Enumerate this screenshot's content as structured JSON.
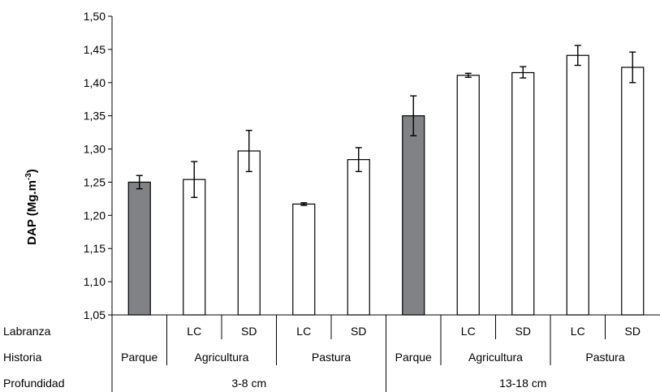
{
  "chart_data": {
    "type": "bar",
    "ylabel_main": "DAP (Mg.m",
    "ylabel_sup": "-3",
    "ylabel_close": ")",
    "ylim": [
      1.05,
      1.5
    ],
    "yticks": [
      "1,05",
      "1,10",
      "1,15",
      "1,20",
      "1,25",
      "1,30",
      "1,35",
      "1,40",
      "1,45",
      "1,50"
    ],
    "ytick_values": [
      1.05,
      1.1,
      1.15,
      1.2,
      1.25,
      1.3,
      1.35,
      1.4,
      1.45,
      1.5
    ],
    "grid": false,
    "bars": [
      {
        "labranza": "",
        "historia": "Parque",
        "profundidad": "3-8 cm",
        "value": 1.25,
        "err_low": 1.24,
        "err_high": 1.26,
        "fill": "#808285"
      },
      {
        "labranza": "LC",
        "historia": "Agricultura",
        "profundidad": "3-8 cm",
        "value": 1.254,
        "err_low": 1.227,
        "err_high": 1.281,
        "fill": "#ffffff"
      },
      {
        "labranza": "SD",
        "historia": "Agricultura",
        "profundidad": "3-8 cm",
        "value": 1.297,
        "err_low": 1.266,
        "err_high": 1.328,
        "fill": "#ffffff"
      },
      {
        "labranza": "LC",
        "historia": "Pastura",
        "profundidad": "3-8 cm",
        "value": 1.217,
        "err_low": 1.215,
        "err_high": 1.219,
        "fill": "#ffffff"
      },
      {
        "labranza": "SD",
        "historia": "Pastura",
        "profundidad": "3-8 cm",
        "value": 1.284,
        "err_low": 1.266,
        "err_high": 1.302,
        "fill": "#ffffff"
      },
      {
        "labranza": "",
        "historia": "Parque",
        "profundidad": "13-18 cm",
        "value": 1.35,
        "err_low": 1.32,
        "err_high": 1.38,
        "fill": "#808285"
      },
      {
        "labranza": "LC",
        "historia": "Agricultura",
        "profundidad": "13-18 cm",
        "value": 1.411,
        "err_low": 1.408,
        "err_high": 1.414,
        "fill": "#ffffff"
      },
      {
        "labranza": "SD",
        "historia": "Agricultura",
        "profundidad": "13-18 cm",
        "value": 1.415,
        "err_low": 1.407,
        "err_high": 1.424,
        "fill": "#ffffff"
      },
      {
        "labranza": "LC",
        "historia": "Pastura",
        "profundidad": "13-18 cm",
        "value": 1.441,
        "err_low": 1.426,
        "err_high": 1.456,
        "fill": "#ffffff"
      },
      {
        "labranza": "SD",
        "historia": "Pastura",
        "profundidad": "13-18 cm",
        "value": 1.423,
        "err_low": 1.4,
        "err_high": 1.446,
        "fill": "#ffffff"
      }
    ],
    "row_titles": [
      "Labranza",
      "Historia",
      "Profundidad"
    ],
    "historia_groups": [
      {
        "label": "Parque",
        "start": 0,
        "end": 0
      },
      {
        "label": "Agricultura",
        "start": 1,
        "end": 2
      },
      {
        "label": "Pastura",
        "start": 3,
        "end": 4
      },
      {
        "label": "Parque",
        "start": 5,
        "end": 5
      },
      {
        "label": "Agricultura",
        "start": 6,
        "end": 7
      },
      {
        "label": "Pastura",
        "start": 8,
        "end": 9
      }
    ],
    "profundidad_groups": [
      {
        "label": "3-8 cm",
        "start": 0,
        "end": 4
      },
      {
        "label": "13-18 cm",
        "start": 5,
        "end": 9
      }
    ],
    "colors": {
      "parque": "#808285",
      "other": "#ffffff",
      "stroke": "#000000"
    }
  }
}
